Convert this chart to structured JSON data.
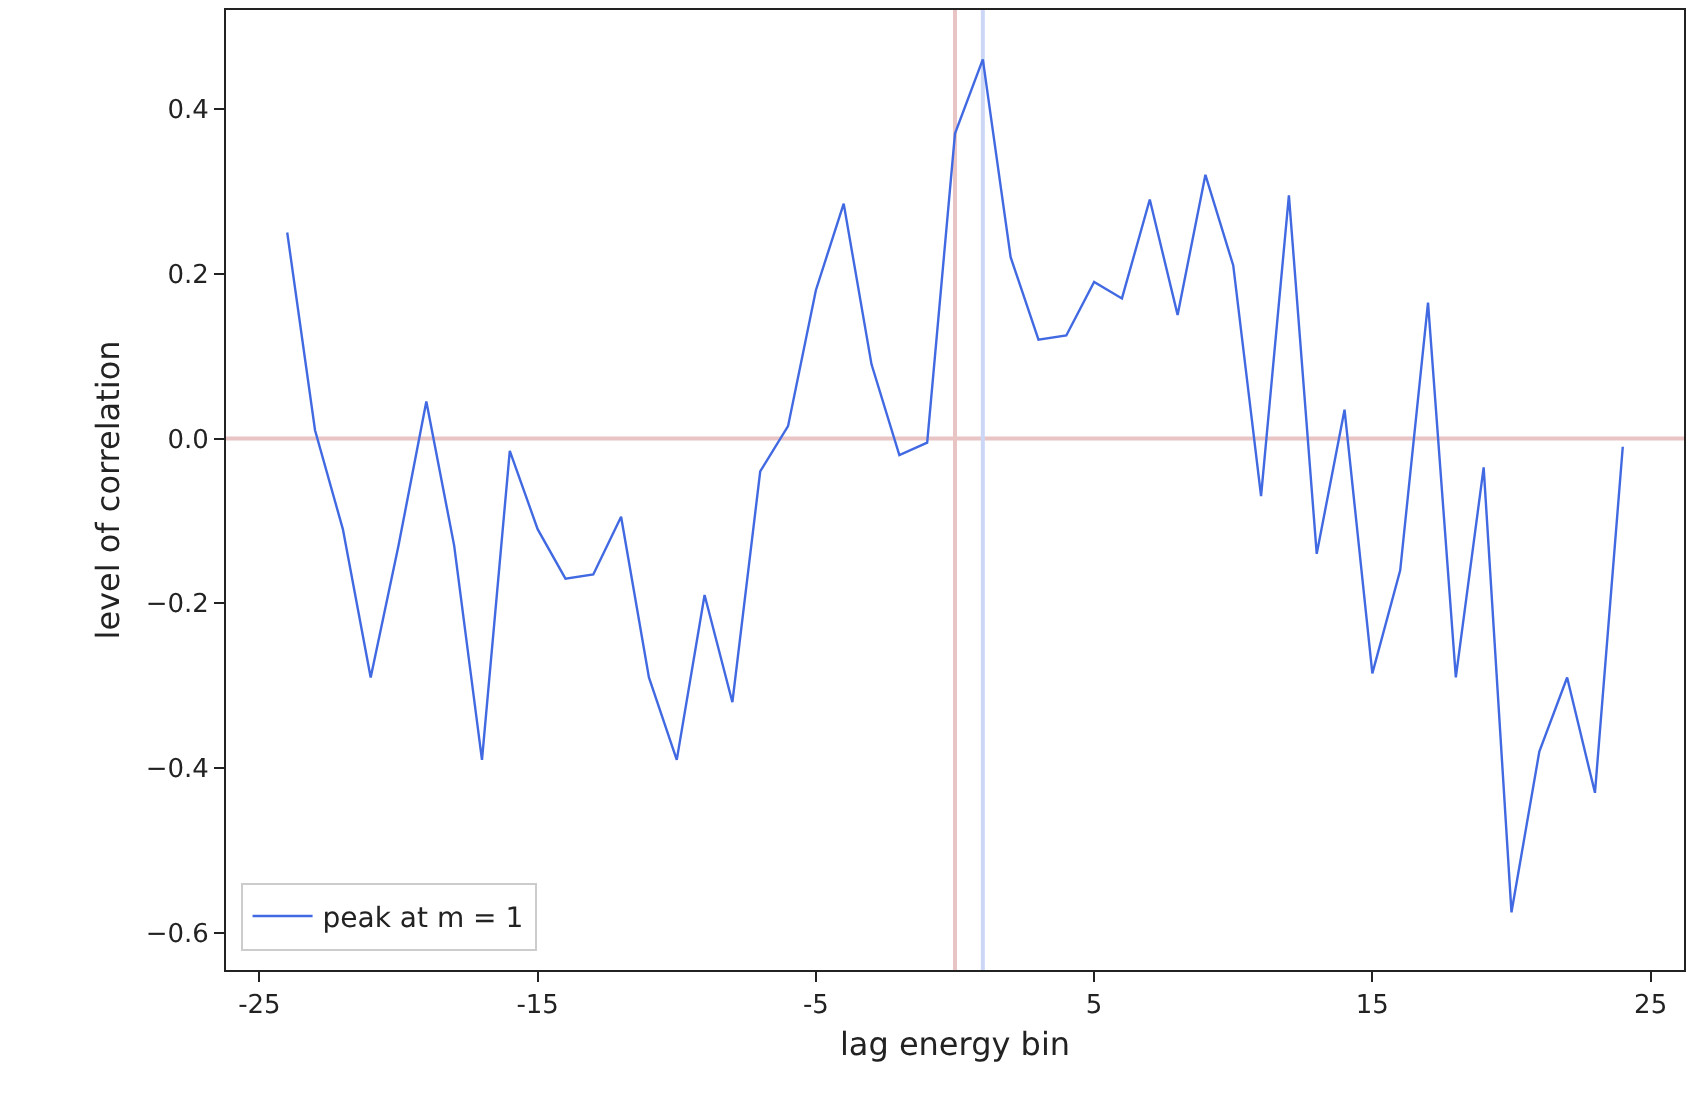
{
  "chart_data": {
    "type": "line",
    "xlabel": "lag energy bin",
    "ylabel": "level of correlation",
    "x": [
      -24,
      -23,
      -22,
      -21,
      -20,
      -19,
      -18,
      -17,
      -16,
      -15,
      -14,
      -13,
      -12,
      -11,
      -10,
      -9,
      -8,
      -7,
      -6,
      -5,
      -4,
      -3,
      -2,
      -1,
      0,
      1,
      2,
      3,
      4,
      5,
      6,
      7,
      8,
      9,
      10,
      11,
      12,
      13,
      14,
      15,
      16,
      17,
      18,
      19,
      20,
      21,
      22,
      23,
      24
    ],
    "series": [
      {
        "name": "peak at m = 1",
        "color": "#4169e1",
        "values": [
          0.25,
          0.01,
          -0.11,
          -0.29,
          -0.13,
          0.045,
          -0.13,
          -0.39,
          -0.015,
          -0.11,
          -0.17,
          -0.165,
          -0.095,
          -0.29,
          -0.39,
          -0.19,
          -0.32,
          -0.04,
          0.015,
          0.18,
          0.285,
          0.09,
          -0.02,
          -0.005,
          0.37,
          0.46,
          0.22,
          0.12,
          0.125,
          0.19,
          0.17,
          0.29,
          0.15,
          0.32,
          0.21,
          -0.07,
          0.295,
          -0.14,
          0.035,
          -0.285,
          -0.16,
          0.165,
          -0.29,
          -0.035,
          -0.575,
          -0.38,
          -0.29,
          -0.43,
          -0.01
        ]
      }
    ],
    "xlim": [
      -26.2,
      26.2
    ],
    "xticks": [
      -25,
      -15,
      -5,
      5,
      15,
      25
    ],
    "ylim": [
      -0.645,
      0.52
    ],
    "yticks": [
      {
        "value": -0.6,
        "label": "−0.6"
      },
      {
        "value": -0.4,
        "label": "−0.4"
      },
      {
        "value": -0.2,
        "label": "−0.2"
      },
      {
        "value": 0,
        "label": "0.0"
      },
      {
        "value": 0.2,
        "label": "0.2"
      },
      {
        "value": 0.4,
        "label": "0.4"
      }
    ],
    "ref_lines": [
      {
        "axis": "y",
        "value": 0,
        "color": "#e8c4c4"
      },
      {
        "axis": "x",
        "value": 0,
        "color": "#e8c4c4"
      },
      {
        "axis": "x",
        "value": 1,
        "color": "#ccd7f6"
      }
    ],
    "grid": false,
    "legend": "bottom left",
    "line_style": "solid",
    "marker": "none"
  }
}
